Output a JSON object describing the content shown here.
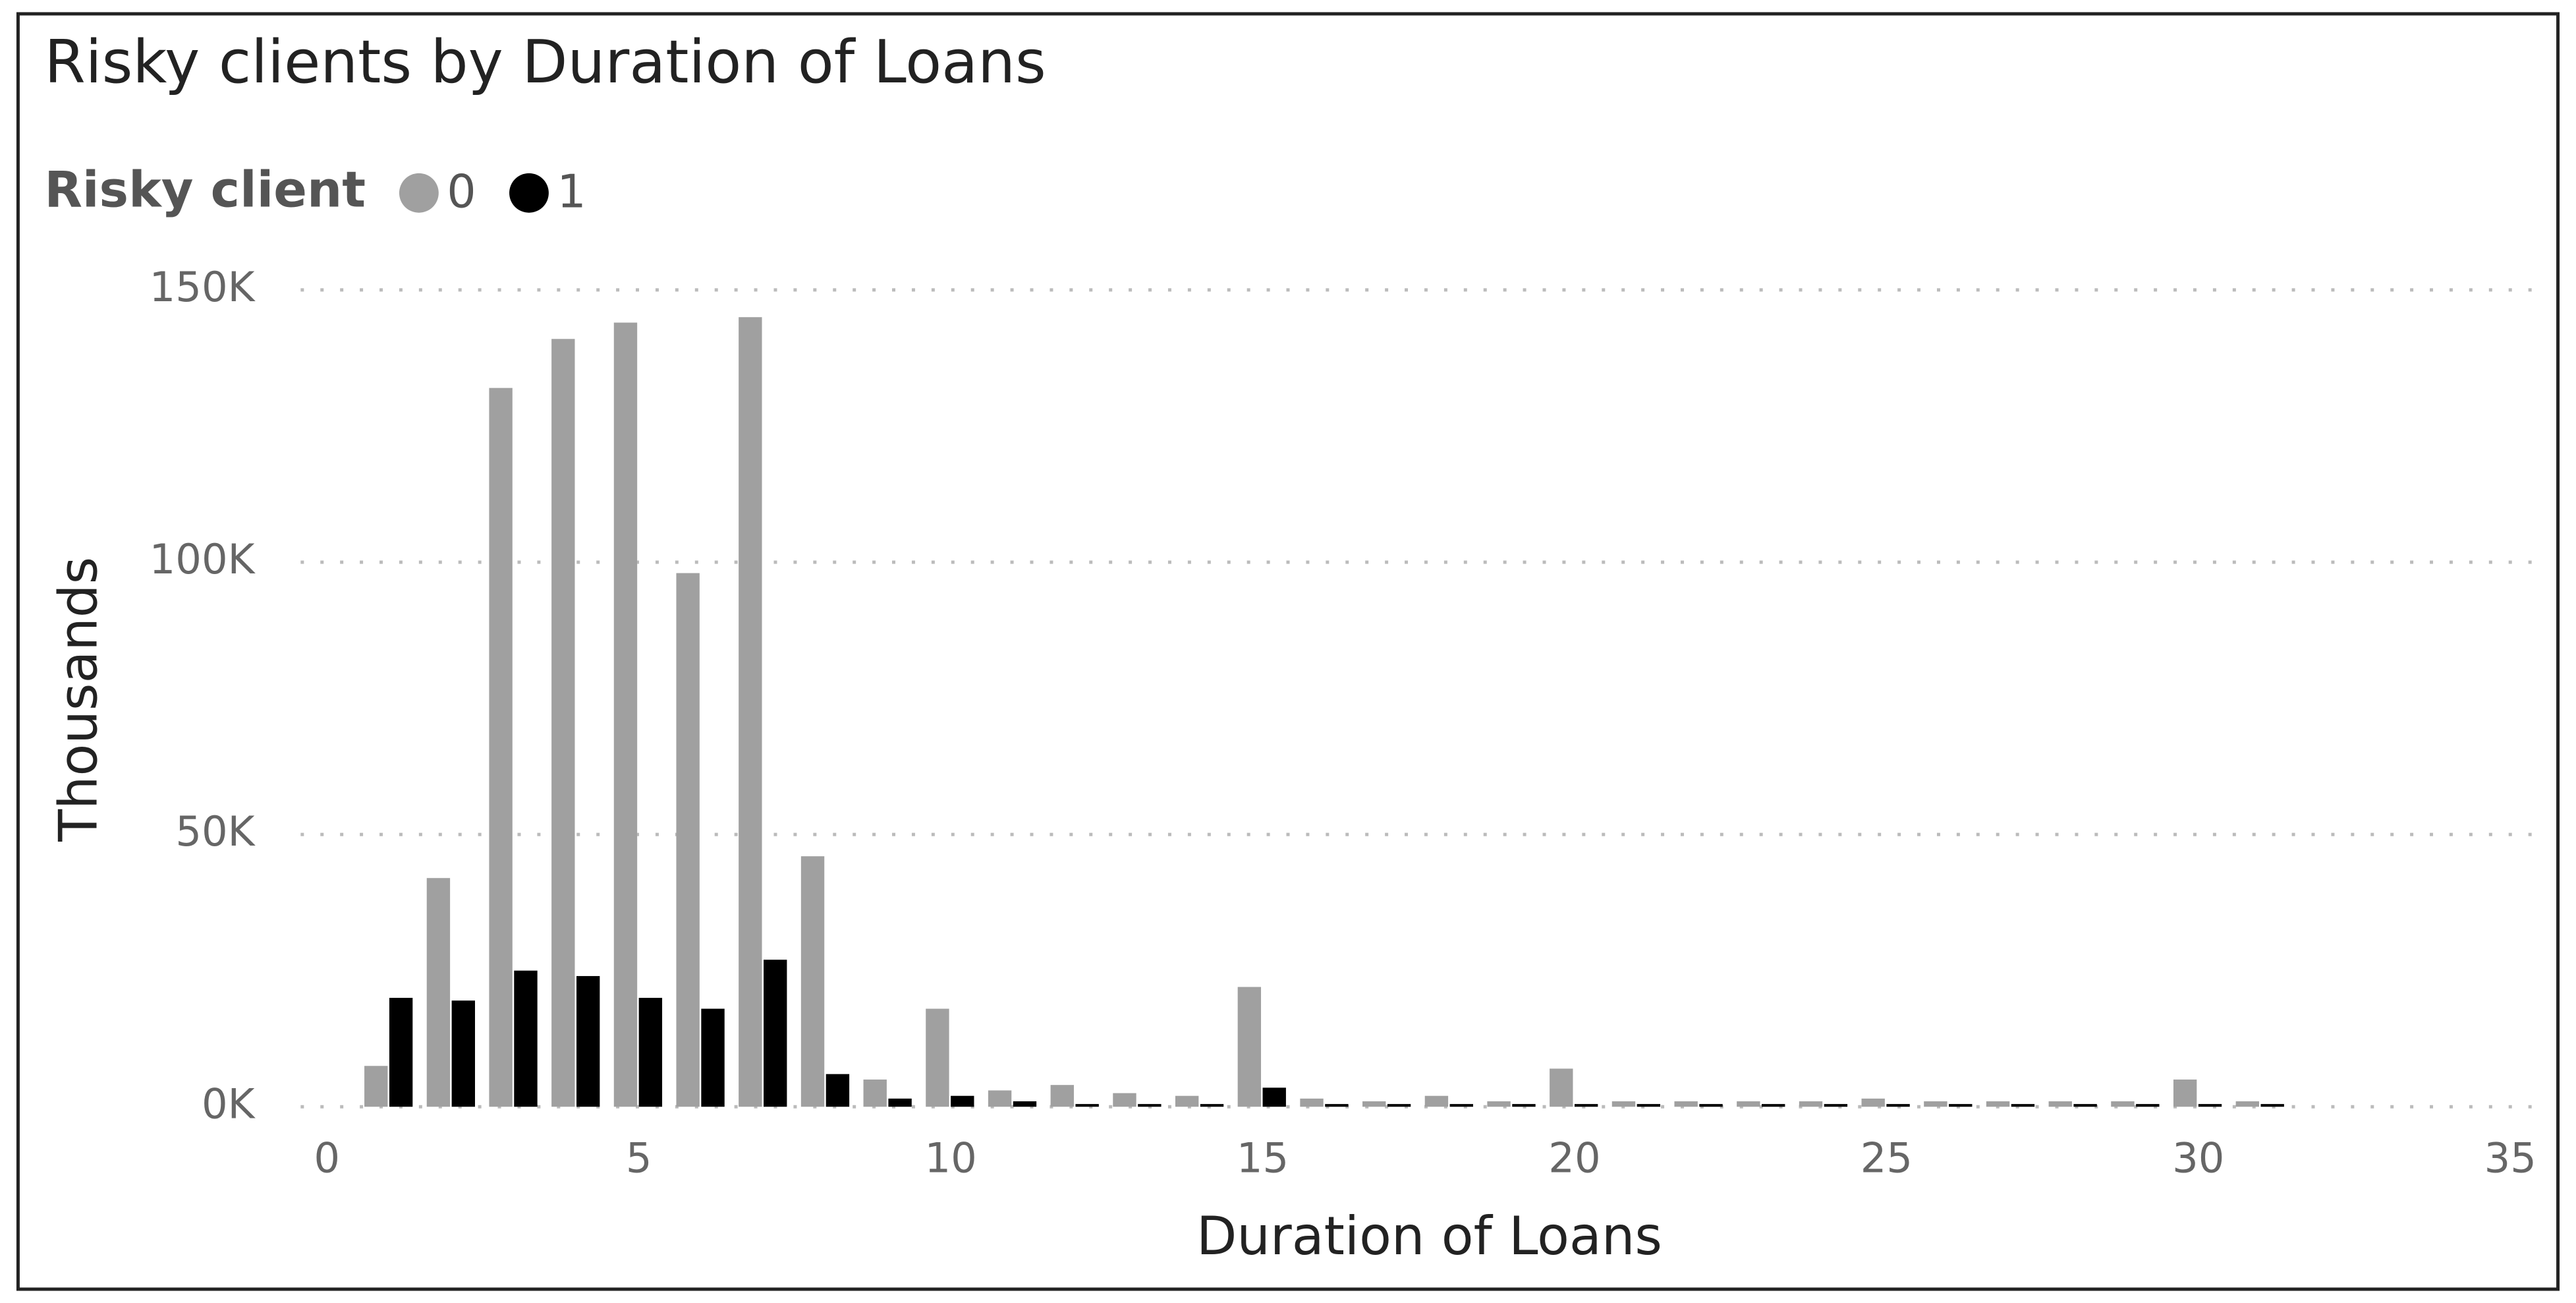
{
  "chart_data": {
    "type": "bar",
    "title": "Risky clients by Duration of Loans",
    "legend_title": "Risky client",
    "x": [
      1,
      2,
      3,
      4,
      5,
      6,
      7,
      8,
      9,
      10,
      11,
      12,
      13,
      14,
      15,
      16,
      17,
      18,
      19,
      20,
      21,
      22,
      23,
      24,
      25,
      26,
      27,
      28,
      29,
      30,
      31
    ],
    "series": [
      {
        "name": "0",
        "color": "#a0a0a0",
        "values": [
          7500,
          42000,
          132000,
          141000,
          144000,
          98000,
          145000,
          46000,
          5000,
          18000,
          3000,
          4000,
          2500,
          2000,
          22000,
          1500,
          1000,
          2000,
          1000,
          7000,
          1000,
          1000,
          1000,
          1000,
          1500,
          1000,
          1000,
          1000,
          1000,
          5000,
          1000
        ]
      },
      {
        "name": "1",
        "color": "#000000",
        "values": [
          20000,
          19500,
          25000,
          24000,
          20000,
          18000,
          27000,
          6000,
          1500,
          2000,
          1000,
          500,
          500,
          500,
          3500,
          500,
          500,
          500,
          500,
          500,
          500,
          500,
          500,
          500,
          500,
          500,
          500,
          500,
          500,
          500,
          500
        ]
      }
    ],
    "xlabel": "Duration of Loans",
    "ylabel": "Thousands",
    "xlim": [
      0,
      35
    ],
    "xticks": [
      0,
      5,
      10,
      15,
      20,
      25,
      30,
      35
    ],
    "ylim": [
      0,
      150000
    ],
    "yticks": [
      {
        "value": 0,
        "label": "0K"
      },
      {
        "value": 50000,
        "label": "50K"
      },
      {
        "value": 100000,
        "label": "100K"
      },
      {
        "value": 150000,
        "label": "150K"
      }
    ],
    "grid": true
  }
}
